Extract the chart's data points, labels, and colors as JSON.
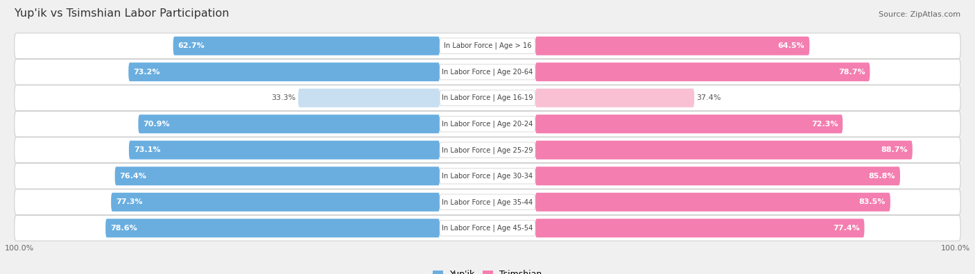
{
  "title": "Yup'ik vs Tsimshian Labor Participation",
  "source": "Source: ZipAtlas.com",
  "categories": [
    "In Labor Force | Age > 16",
    "In Labor Force | Age 20-64",
    "In Labor Force | Age 16-19",
    "In Labor Force | Age 20-24",
    "In Labor Force | Age 25-29",
    "In Labor Force | Age 30-34",
    "In Labor Force | Age 35-44",
    "In Labor Force | Age 45-54"
  ],
  "yupik_values": [
    62.7,
    73.2,
    33.3,
    70.9,
    73.1,
    76.4,
    77.3,
    78.6
  ],
  "tsimshian_values": [
    64.5,
    78.7,
    37.4,
    72.3,
    88.7,
    85.8,
    83.5,
    77.4
  ],
  "yupik_color": "#6aaee0",
  "tsimshian_color": "#f47eb0",
  "yupik_light_color": "#c8dff2",
  "tsimshian_light_color": "#f9c0d4",
  "background_color": "#f0f0f0",
  "row_bg_color": "#ffffff",
  "label_bg_color": "#ffffff",
  "title_color": "#333333",
  "source_color": "#666666",
  "value_color_inside": "#ffffff",
  "value_color_outside": "#555555"
}
